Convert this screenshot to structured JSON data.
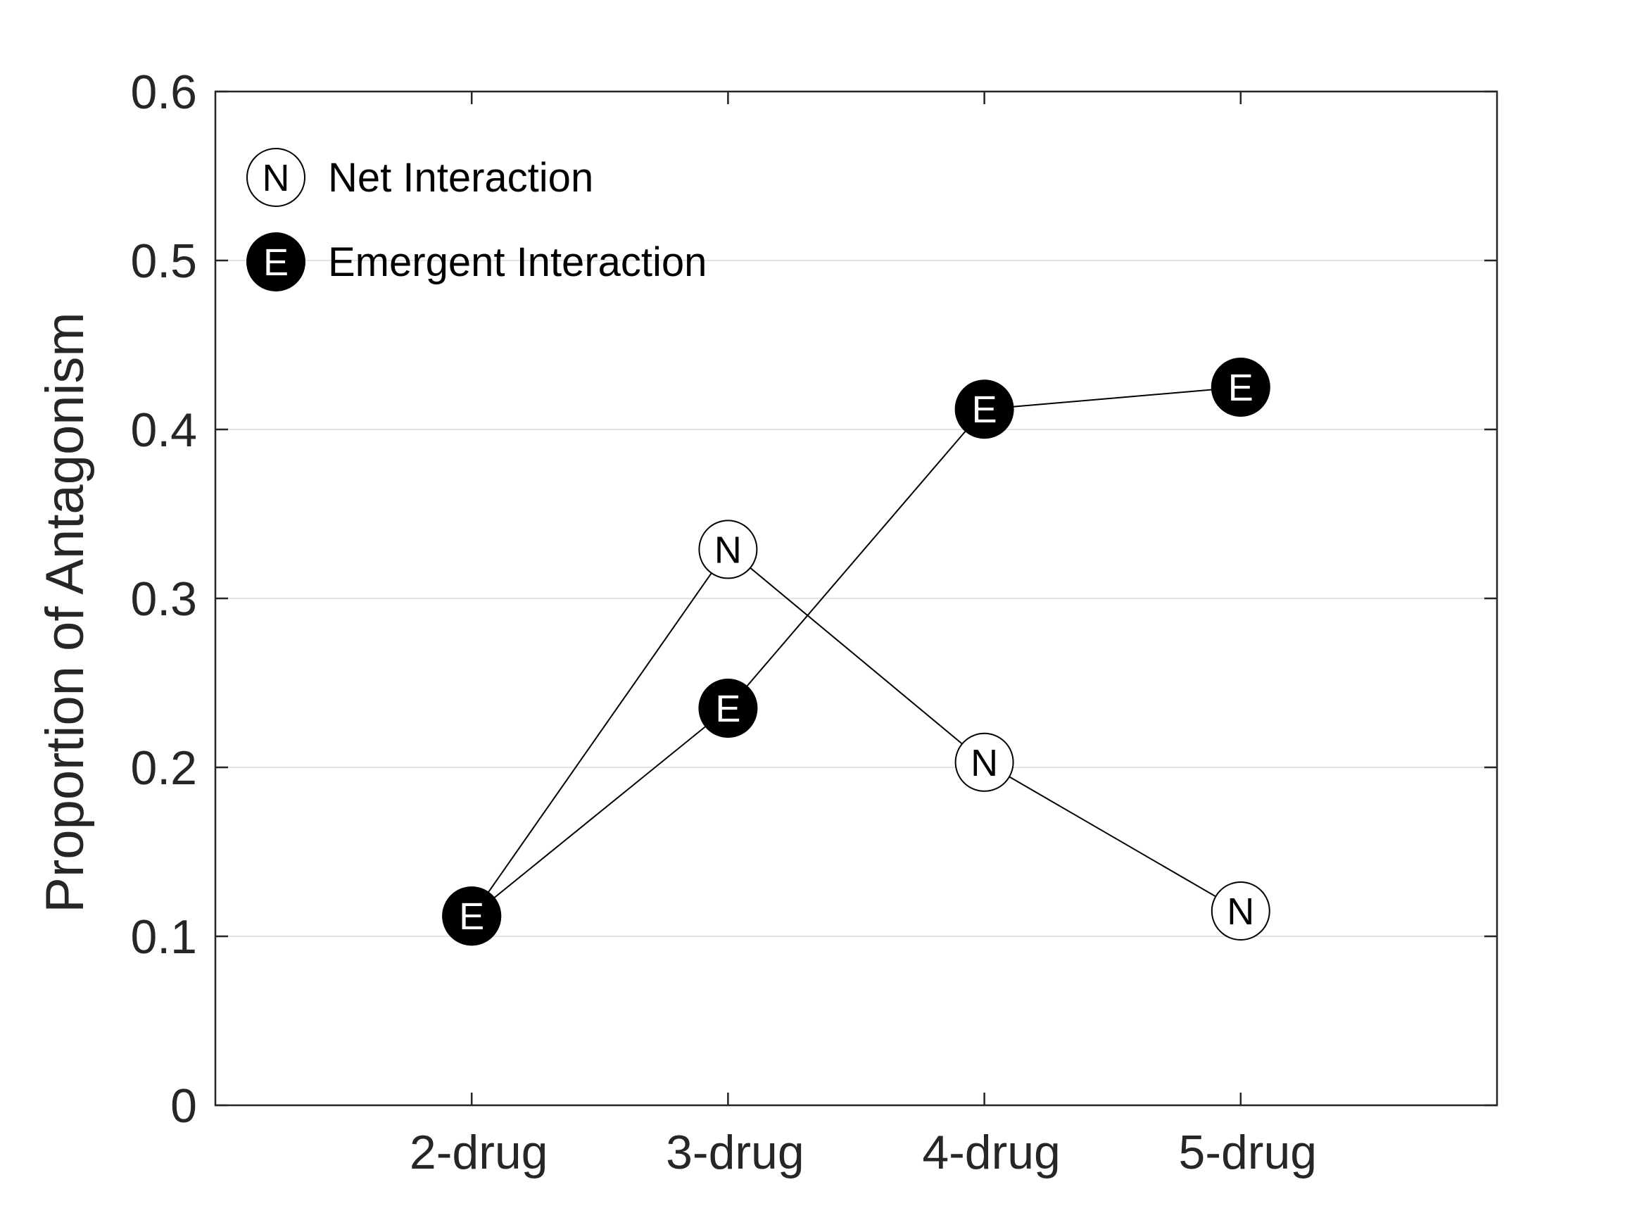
{
  "chart_data": {
    "type": "line",
    "categories": [
      "2-drug",
      "3-drug",
      "4-drug",
      "5-drug"
    ],
    "xlim": [
      0,
      5
    ],
    "ylim": [
      0,
      0.6
    ],
    "yticks": [
      "0",
      "0.1",
      "0.2",
      "0.3",
      "0.4",
      "0.5",
      "0.6"
    ],
    "ylabel": "Proportion of Antagonism",
    "xlabel": "",
    "title": "",
    "grid": "horizontal",
    "legend_position": "top-left",
    "series": [
      {
        "name": "Net Interaction",
        "marker_letter": "N",
        "marker_fill": "#ffffff",
        "marker_text_color": "#000000",
        "x": [
          1,
          2,
          3,
          4
        ],
        "values": [
          0.112,
          0.329,
          0.203,
          0.115
        ]
      },
      {
        "name": "Emergent Interaction",
        "marker_letter": "E",
        "marker_fill": "#000000",
        "marker_text_color": "#ffffff",
        "x": [
          1,
          2,
          3,
          4
        ],
        "values": [
          0.112,
          0.235,
          0.412,
          0.425
        ]
      }
    ]
  }
}
